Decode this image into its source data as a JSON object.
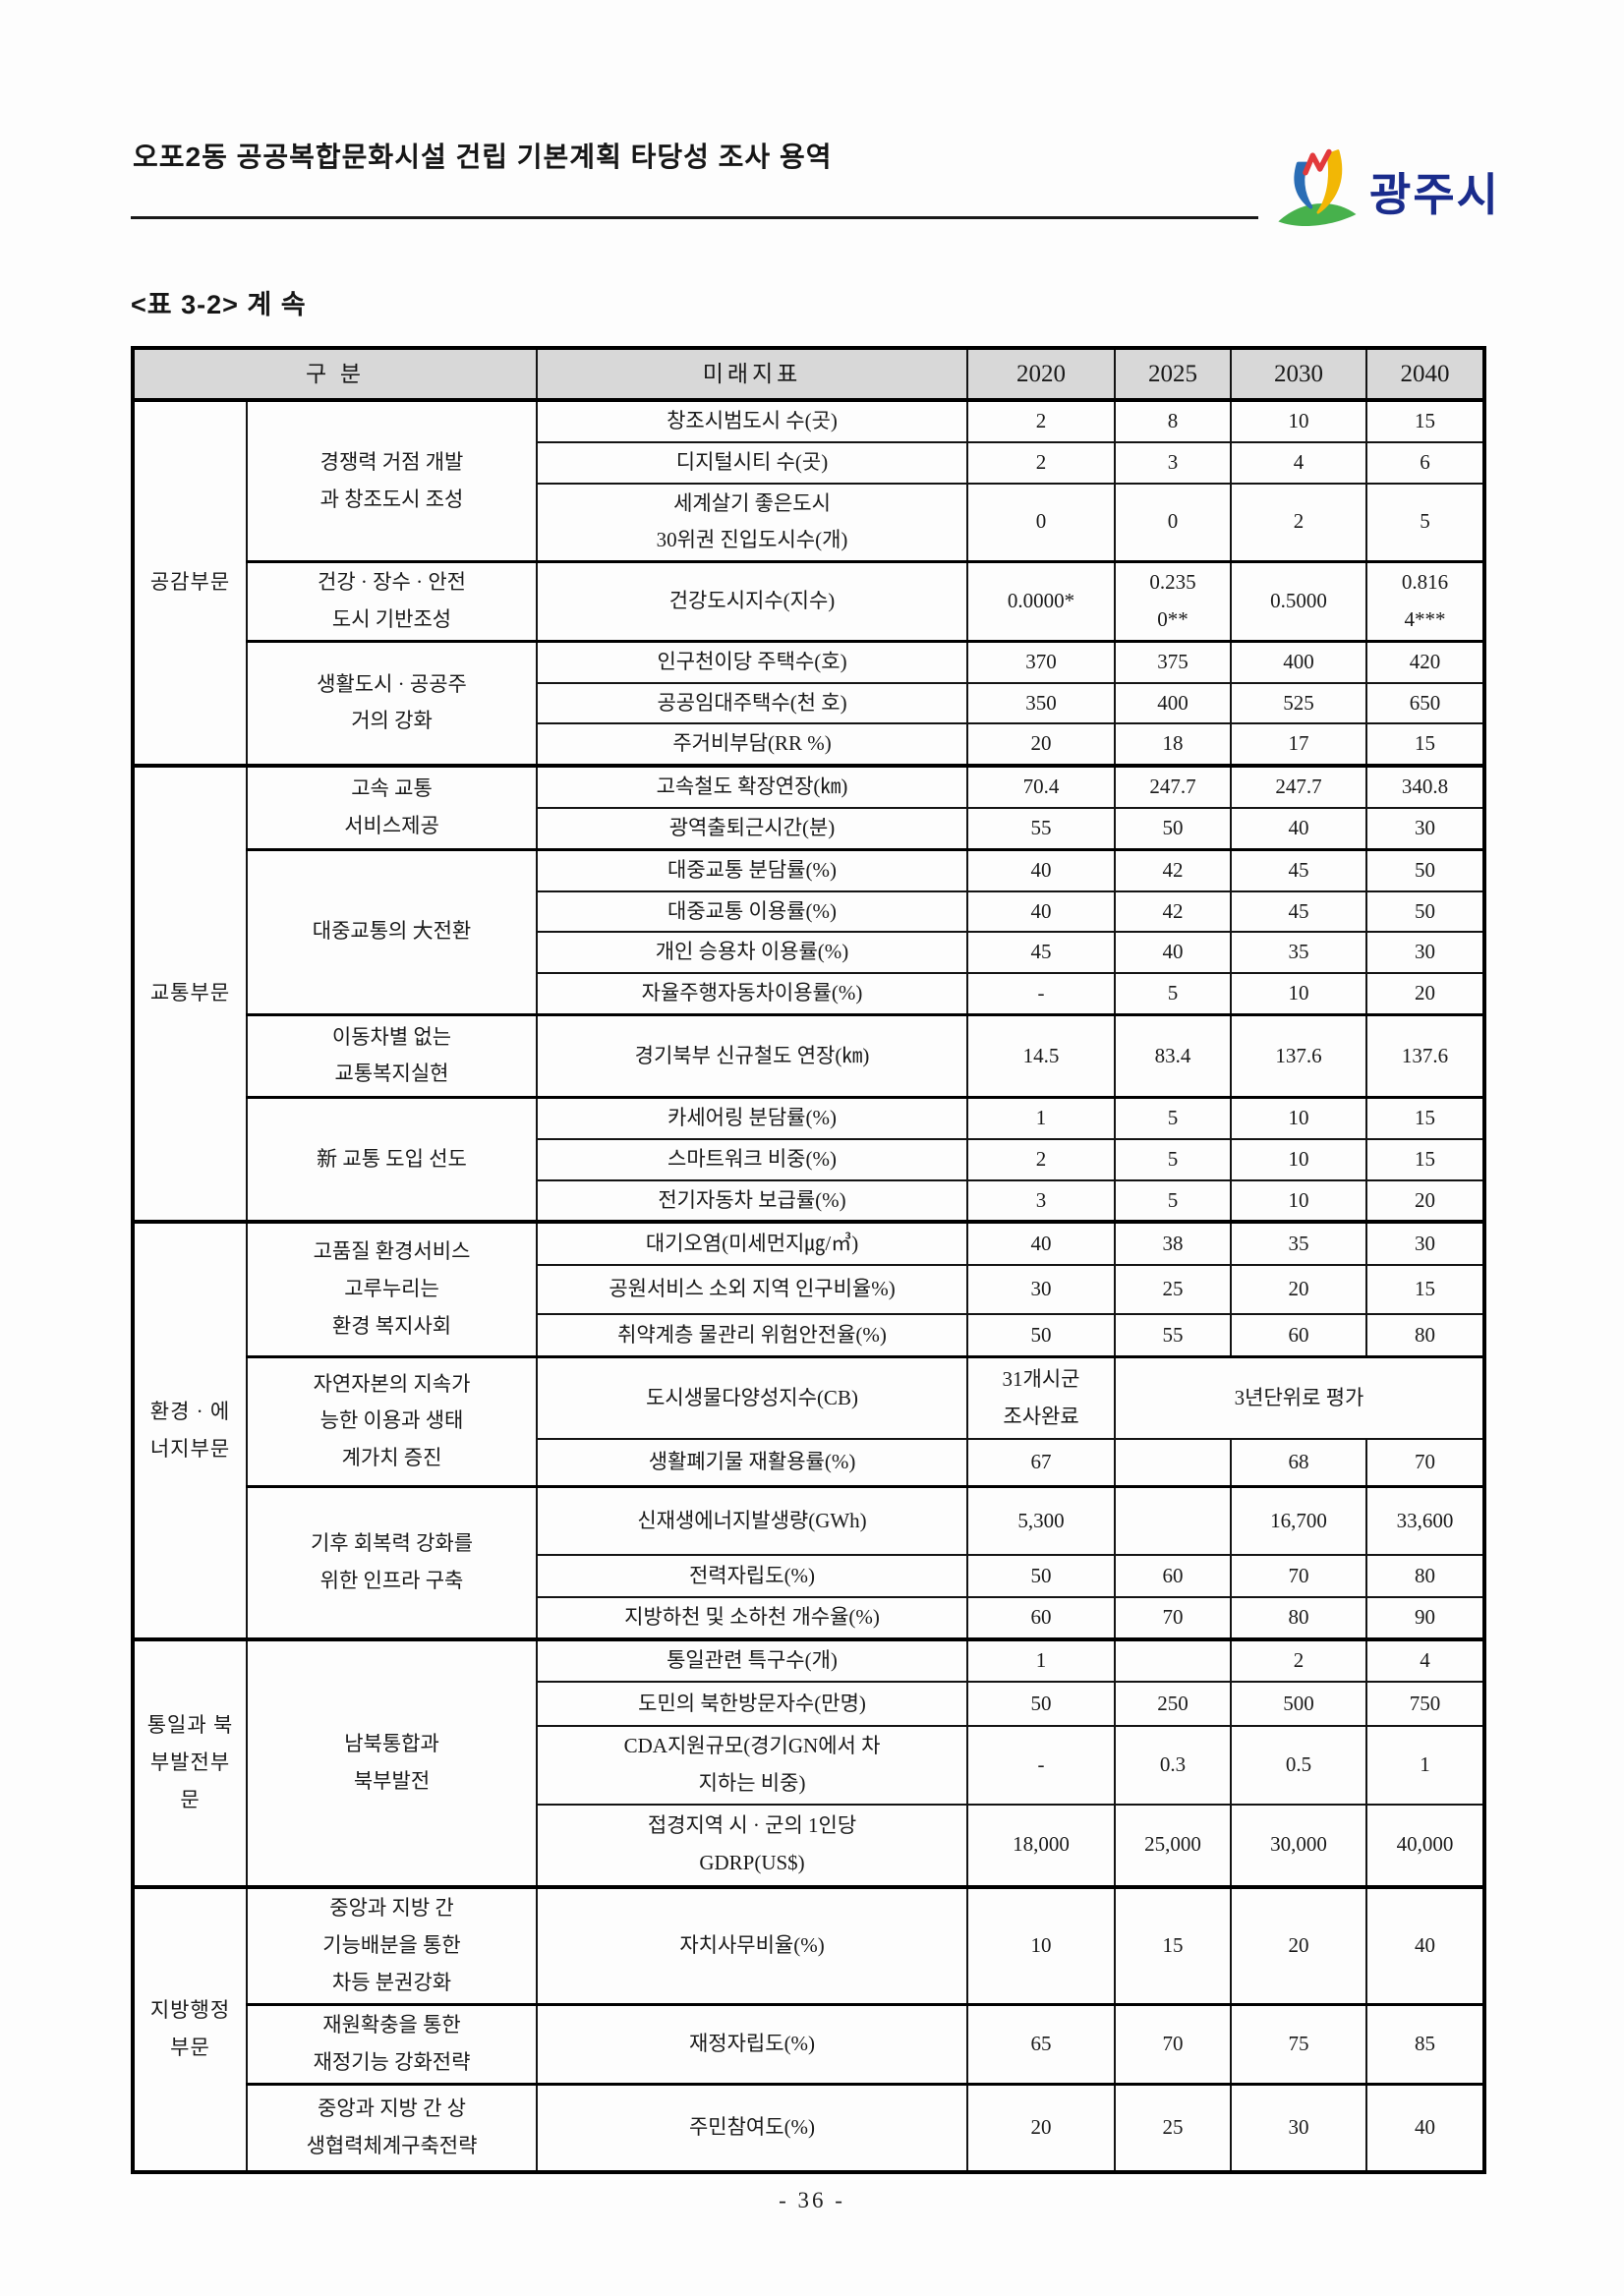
{
  "header": {
    "title": "오포2동 공공복합문화시설 건립 기본계획 타당성 조사 용역",
    "logo_text": "광주시",
    "logo_icon": "gwangju-city-emblem"
  },
  "caption": "<표 3-2> 계 속",
  "footer": {
    "page_number": "- 36 -"
  },
  "colors": {
    "header_row_bg": "#d8d8d8",
    "border": "#141414",
    "logo_text": "#1a2c8c",
    "emblem_blue": "#2a6db5",
    "emblem_yellow": "#f2b705",
    "emblem_green": "#47b14c",
    "emblem_red": "#e23a3c"
  },
  "table": {
    "header": {
      "col_category": "구 분",
      "col_indicator": "미래지표",
      "years": [
        "2020",
        "2025",
        "2030",
        "2040"
      ]
    },
    "sections": [
      {
        "name": "공감부문",
        "groups": [
          {
            "name": "경쟁력 거점 개발\n과 창조도시 조성",
            "rows": [
              {
                "indicator": "창조시범도시 수(곳)",
                "values": [
                  "2",
                  "8",
                  "10",
                  "15"
                ],
                "h": 42
              },
              {
                "indicator": "디지털시티 수(곳)",
                "values": [
                  "2",
                  "3",
                  "4",
                  "6"
                ],
                "h": 34
              },
              {
                "indicator": "세계살기 좋은도시\n30위권 진입도시수(개)",
                "values": [
                  "0",
                  "0",
                  "2",
                  "5"
                ],
                "h": 74
              }
            ]
          },
          {
            "name": "건강 · 장수 · 안전\n도시 기반조성",
            "rows": [
              {
                "indicator": "건강도시지수(지수)",
                "values": [
                  "0.0000*",
                  "0.235\n0**",
                  "0.5000",
                  "0.816\n4***"
                ],
                "h": 76
              }
            ]
          },
          {
            "name": "생활도시 · 공공주\n거의 강화",
            "rows": [
              {
                "indicator": "인구천이당 주택수(호)",
                "values": [
                  "370",
                  "375",
                  "400",
                  "420"
                ],
                "h": 36
              },
              {
                "indicator": "공공임대주택수(천 호)",
                "values": [
                  "350",
                  "400",
                  "525",
                  "650"
                ],
                "h": 38
              },
              {
                "indicator": "주거비부담(RR %)",
                "values": [
                  "20",
                  "18",
                  "17",
                  "15"
                ],
                "h": 34
              }
            ]
          }
        ]
      },
      {
        "name": "교통부문",
        "groups": [
          {
            "name": "고속 교통\n서비스제공",
            "rows": [
              {
                "indicator": "고속철도 확장연장(㎞)",
                "values": [
                  "70.4",
                  "247.7",
                  "247.7",
                  "340.8"
                ],
                "h": 34
              },
              {
                "indicator": "광역출퇴근시간(분)",
                "values": [
                  "55",
                  "50",
                  "40",
                  "30"
                ],
                "h": 34
              }
            ]
          },
          {
            "name": "대중교통의 大전환",
            "rows": [
              {
                "indicator": "대중교통 분담률(%)",
                "values": [
                  "40",
                  "42",
                  "45",
                  "50"
                ],
                "h": 34
              },
              {
                "indicator": "대중교통 이용률(%)",
                "values": [
                  "40",
                  "42",
                  "45",
                  "50"
                ],
                "h": 34
              },
              {
                "indicator": "개인 승용차 이용률(%)",
                "values": [
                  "45",
                  "40",
                  "35",
                  "30"
                ],
                "h": 34
              },
              {
                "indicator": "자율주행자동차이용률(%)",
                "values": [
                  "-",
                  "5",
                  "10",
                  "20"
                ],
                "h": 34
              }
            ]
          },
          {
            "name": "이동차별 없는\n교통복지실현",
            "rows": [
              {
                "indicator": "경기북부 신규철도 연장(㎞)",
                "values": [
                  "14.5",
                  "83.4",
                  "137.6",
                  "137.6"
                ],
                "h": 84
              }
            ]
          },
          {
            "name": "新 교통 도입 선도",
            "rows": [
              {
                "indicator": "카세어링 분담률(%)",
                "values": [
                  "1",
                  "5",
                  "10",
                  "15"
                ],
                "h": 34
              },
              {
                "indicator": "스마트워크 비중(%)",
                "values": [
                  "2",
                  "5",
                  "10",
                  "15"
                ],
                "h": 34
              },
              {
                "indicator": "전기자동차 보급률(%)",
                "values": [
                  "3",
                  "5",
                  "10",
                  "20"
                ],
                "h": 34
              }
            ]
          }
        ]
      },
      {
        "name": "환경 · 에\n너지부문",
        "groups": [
          {
            "name": "고품질 환경서비스\n고루누리는\n환경 복지사회",
            "rows": [
              {
                "indicator": "대기오염(미세먼지㎍/㎥)",
                "values": [
                  "40",
                  "38",
                  "35",
                  "30"
                ],
                "h": 44
              },
              {
                "indicator": "공원서비스 소외 지역 인구비율%)",
                "values": [
                  "30",
                  "25",
                  "20",
                  "15"
                ],
                "h": 50
              },
              {
                "indicator": "취약계층 물관리 위험안전율(%)",
                "values": [
                  "50",
                  "55",
                  "60",
                  "80"
                ],
                "h": 43
              }
            ]
          },
          {
            "name": "자연자본의 지속가\n능한 이용과 생태\n계가치 증진",
            "rows": [
              {
                "indicator": "도시생물다양성지수(CB)",
                "values": [
                  "31개시군\n조사완료"
                ],
                "merge": "3년단위로 평가",
                "h": 84
              },
              {
                "indicator": "생활폐기물 재활용률(%)",
                "values": [
                  "67",
                  "",
                  "68",
                  "70"
                ],
                "h": 48
              }
            ]
          },
          {
            "name": "기후 회복력 강화를\n위한 인프라 구축",
            "rows": [
              {
                "indicator": "신재생에너지발생량(GWh)",
                "values": [
                  "5,300",
                  "",
                  "16,700",
                  "33,600"
                ],
                "h": 70
              },
              {
                "indicator": "전력자립도(%)",
                "values": [
                  "50",
                  "60",
                  "70",
                  "80"
                ],
                "h": 43
              },
              {
                "indicator": "지방하천 및 소하천 개수율(%)",
                "values": [
                  "60",
                  "70",
                  "80",
                  "90"
                ],
                "h": 41
              }
            ]
          }
        ]
      },
      {
        "name": "통일과 북\n부발전부\n문",
        "groups": [
          {
            "name": "남북통합과\n북부발전",
            "rows": [
              {
                "indicator": "통일관련 특구수(개)",
                "values": [
                  "1",
                  "",
                  "2",
                  "4"
                ],
                "h": 39
              },
              {
                "indicator": "도민의 북한방문자수(만명)",
                "values": [
                  "50",
                  "250",
                  "500",
                  "750"
                ],
                "h": 45
              },
              {
                "indicator": "CDA지원규모(경기GN에서 차\n지하는 비중)",
                "values": [
                  "-",
                  "0.3",
                  "0.5",
                  "1"
                ],
                "h": 79
              },
              {
                "indicator": "접경지역 시 · 군의 1인당\nGDRP(US$)",
                "values": [
                  "18,000",
                  "25,000",
                  "30,000",
                  "40,000"
                ],
                "h": 84
              }
            ]
          }
        ]
      },
      {
        "name": "지방행정\n부문",
        "groups": [
          {
            "name": "중앙과 지방 간\n기능배분을 통한\n차등 분권강화",
            "rows": [
              {
                "indicator": "자치사무비율(%)",
                "values": [
                  "10",
                  "15",
                  "20",
                  "40"
                ],
                "h": 120
              }
            ]
          },
          {
            "name": "재원확충을 통한\n재정기능 강화전략",
            "rows": [
              {
                "indicator": "재정자립도(%)",
                "values": [
                  "65",
                  "70",
                  "75",
                  "85"
                ],
                "h": 76
              }
            ]
          },
          {
            "name": "중앙과 지방 간 상\n생협력체계구축전략",
            "rows": [
              {
                "indicator": "주민참여도(%)",
                "values": [
                  "20",
                  "25",
                  "30",
                  "40"
                ],
                "h": 90
              }
            ]
          }
        ]
      }
    ]
  }
}
